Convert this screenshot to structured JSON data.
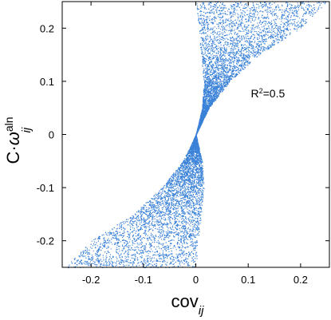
{
  "chart_data": {
    "type": "scatter",
    "title": "",
    "xlabel_main": "cov",
    "xlabel_sub": "ij",
    "ylabel_prefix": "C·",
    "ylabel_symbol": "ω",
    "ylabel_sup": "aln",
    "ylabel_sub": "ij",
    "xlim": [
      -0.255,
      0.255
    ],
    "ylim": [
      -0.25,
      0.25
    ],
    "xticks": [
      -0.2,
      -0.1,
      0,
      0.1,
      0.2
    ],
    "xtick_labels": [
      "-0.2",
      "-0.1",
      "0",
      "0.1",
      "0.2"
    ],
    "yticks": [
      -0.2,
      -0.1,
      0,
      0.1,
      0.2
    ],
    "ytick_labels": [
      "-0.2",
      "-0.1",
      "0",
      "0.1",
      "0.2"
    ],
    "grid": false,
    "annotation": {
      "prefix": "R",
      "sup": "2",
      "suffix": "=0.5",
      "x": 0.105,
      "y": 0.07
    },
    "point_color": "#3a82d8",
    "points_description": "dense cloud of ~20000 points filling the region between the hyperbolic boundaries x = y - y^2/... ; region bounded by x >= 0.5*(y - sqrt-shape) (see boundary arrays)",
    "left_boundary": [
      [
        -0.25,
        -0.25
      ],
      [
        -0.2,
        -0.2
      ],
      [
        -0.15,
        -0.12
      ],
      [
        -0.1,
        -0.065
      ],
      [
        -0.05,
        -0.025
      ],
      [
        0.0,
        0.0
      ],
      [
        0.05,
        0.012
      ],
      [
        0.1,
        0.015
      ],
      [
        0.15,
        0.01
      ],
      [
        0.2,
        0.005
      ],
      [
        0.25,
        0.0
      ]
    ],
    "right_boundary": [
      [
        -0.25,
        0.0
      ],
      [
        -0.2,
        0.005
      ],
      [
        -0.15,
        0.01
      ],
      [
        -0.1,
        0.015
      ],
      [
        -0.05,
        0.012
      ],
      [
        0.0,
        0.0
      ],
      [
        0.05,
        0.025
      ],
      [
        0.1,
        0.065
      ],
      [
        0.15,
        0.12
      ],
      [
        0.2,
        0.2
      ],
      [
        0.25,
        0.25
      ]
    ]
  }
}
